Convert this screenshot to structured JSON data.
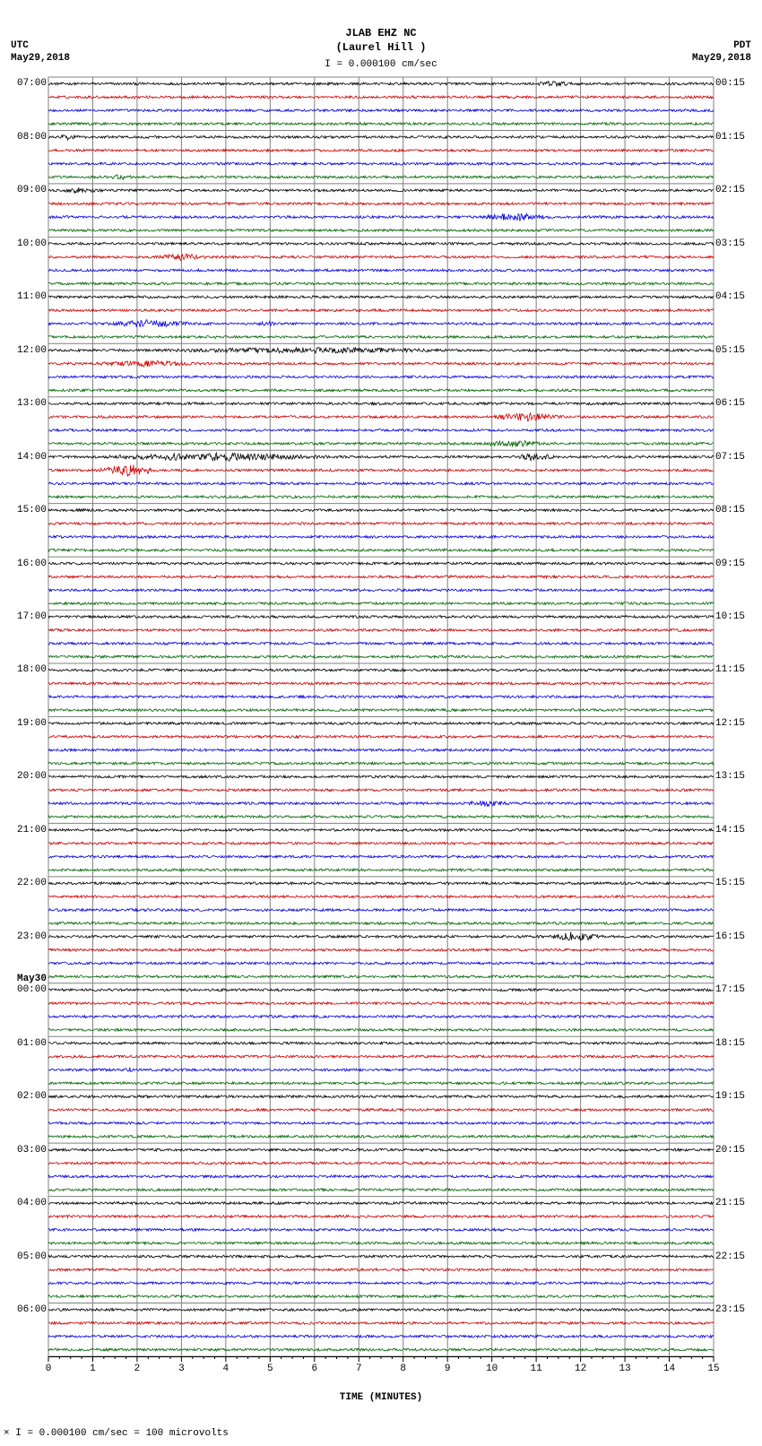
{
  "station": {
    "code": "JLAB EHZ NC",
    "name_paren": "(Laurel Hill )"
  },
  "scale_note": "= 0.000100 cm/sec",
  "scale_bar_symbol": "I",
  "left_header": {
    "tz": "UTC",
    "date": "May29,2018"
  },
  "right_header": {
    "tz": "PDT",
    "date": "May29,2018"
  },
  "x_axis": {
    "title": "TIME (MINUTES)",
    "min": 0,
    "max": 15,
    "tick_step": 1,
    "minor_per_major": 4
  },
  "footer_note": "= 0.000100 cm/sec =    100 microvolts",
  "footer_symbol": "I",
  "footer_prefix": "×",
  "plot": {
    "background": "#ffffff",
    "grid_color": "#808080",
    "grid_width": 1,
    "trace_colors": [
      "#000000",
      "#cc0000",
      "#0000dd",
      "#006400"
    ],
    "n_lines_per_hour": 4,
    "n_hours": 24,
    "left_hours_utc": [
      "07:00",
      "08:00",
      "09:00",
      "10:00",
      "11:00",
      "12:00",
      "13:00",
      "14:00",
      "15:00",
      "16:00",
      "17:00",
      "18:00",
      "19:00",
      "20:00",
      "21:00",
      "22:00",
      "23:00",
      "00:00",
      "01:00",
      "02:00",
      "03:00",
      "04:00",
      "05:00",
      "06:00"
    ],
    "left_date_breaks": {
      "17": "May30"
    },
    "right_labels_pdt": [
      "00:15",
      "01:15",
      "02:15",
      "03:15",
      "04:15",
      "05:15",
      "06:15",
      "07:15",
      "08:15",
      "09:15",
      "10:15",
      "11:15",
      "12:15",
      "13:15",
      "14:15",
      "15:15",
      "16:15",
      "17:15",
      "18:15",
      "19:15",
      "20:15",
      "21:15",
      "22:15",
      "23:15"
    ],
    "trace_amp_base": 1.4,
    "trace_freq": 60,
    "trace_points": 900,
    "bursts": [
      {
        "line": 0,
        "start": 0.72,
        "end": 0.8,
        "amp": 4.0
      },
      {
        "line": 4,
        "start": 0.0,
        "end": 0.06,
        "amp": 3.5
      },
      {
        "line": 7,
        "start": 0.08,
        "end": 0.14,
        "amp": 3.5
      },
      {
        "line": 8,
        "start": 0.0,
        "end": 0.1,
        "amp": 3.5
      },
      {
        "line": 10,
        "start": 0.62,
        "end": 0.78,
        "amp": 5.0
      },
      {
        "line": 13,
        "start": 0.14,
        "end": 0.26,
        "amp": 4.0
      },
      {
        "line": 18,
        "start": 0.06,
        "end": 0.24,
        "amp": 5.0
      },
      {
        "line": 18,
        "start": 0.3,
        "end": 0.36,
        "amp": 3.0
      },
      {
        "line": 20,
        "start": 0.0,
        "end": 0.8,
        "amp": 3.5
      },
      {
        "line": 21,
        "start": 0.0,
        "end": 0.3,
        "amp": 3.5
      },
      {
        "line": 25,
        "start": 0.64,
        "end": 0.8,
        "amp": 5.0
      },
      {
        "line": 27,
        "start": 0.62,
        "end": 0.78,
        "amp": 4.0
      },
      {
        "line": 28,
        "start": 0.0,
        "end": 0.5,
        "amp": 5.0
      },
      {
        "line": 28,
        "start": 0.68,
        "end": 0.78,
        "amp": 4.5
      },
      {
        "line": 29,
        "start": 0.06,
        "end": 0.18,
        "amp": 7.0
      },
      {
        "line": 54,
        "start": 0.6,
        "end": 0.72,
        "amp": 3.5
      },
      {
        "line": 64,
        "start": 0.74,
        "end": 0.84,
        "amp": 6.0
      },
      {
        "line": 74,
        "start": 0.1,
        "end": 0.14,
        "amp": 3.0
      }
    ]
  }
}
